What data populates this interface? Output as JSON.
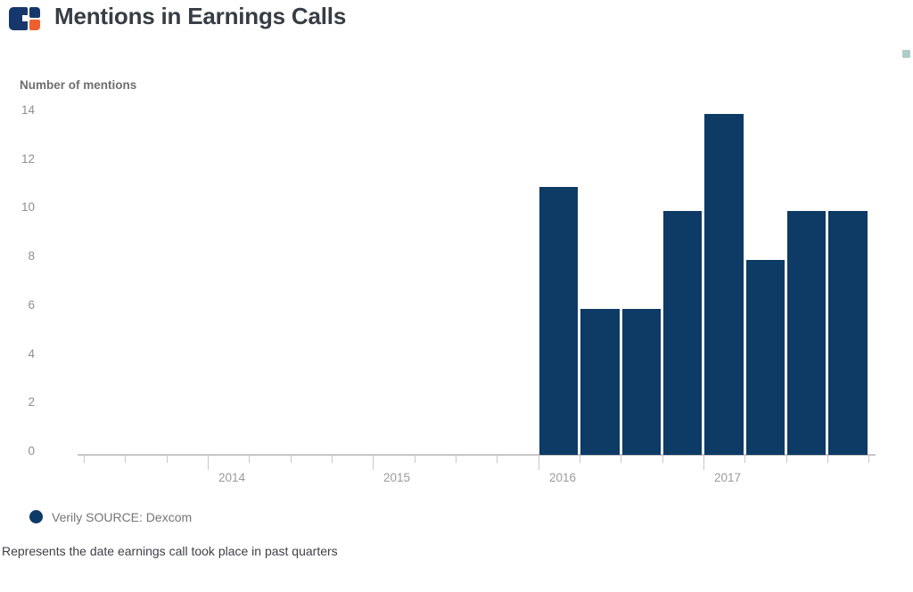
{
  "header": {
    "title": "Mentions in Earnings Calls"
  },
  "icons": {
    "brand_logo": "cb-insights-logo",
    "corner": "teal-corner-marker"
  },
  "legend": {
    "series_label": "Verily SOURCE: Dexcom"
  },
  "footnote": "Represents the date earnings call took place in past quarters",
  "colors": {
    "bar": "#0e3a66",
    "logo_navy": "#16376b",
    "logo_orange": "#f0602f",
    "corner_teal": "#aecdca",
    "axis": "#c8c8c8",
    "tick_label": "#8f8f8f",
    "year_label": "#9b9b9b",
    "title_text": "#373d44",
    "ylabel_text": "#6f6f6f",
    "legend_text": "#757575",
    "footnote_text": "#3c424a"
  },
  "chart_data": {
    "type": "bar",
    "title": "Mentions in Earnings Calls",
    "ylabel": "Number of mentions",
    "ylim": [
      0,
      14
    ],
    "y_ticks": [
      0,
      2,
      4,
      6,
      8,
      10,
      12,
      14
    ],
    "grid": false,
    "legend_position": "bottom-left",
    "x_axis": {
      "tick_unit": "quarter",
      "year_labels": [
        "2014",
        "2015",
        "2016",
        "2017"
      ]
    },
    "categories": [
      "2016 Q1",
      "2016 Q2",
      "2016 Q3",
      "2016 Q4",
      "2017 Q1",
      "2017 Q2",
      "2017 Q3",
      "2017 Q4"
    ],
    "series": [
      {
        "name": "Verily SOURCE: Dexcom",
        "values": [
          11,
          6,
          6,
          10,
          14,
          8,
          10,
          10
        ]
      }
    ],
    "footnote": "Represents the date earnings call took place in past quarters"
  }
}
